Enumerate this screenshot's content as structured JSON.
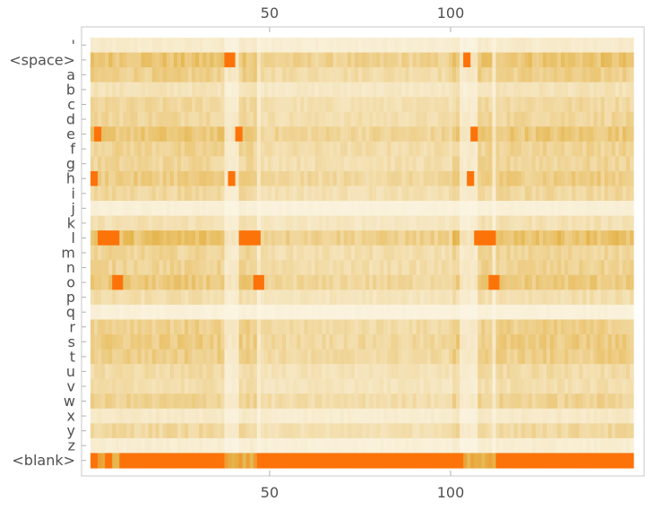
{
  "chart_data": {
    "type": "heatmap",
    "title": "",
    "xlabel": "",
    "ylabel": "",
    "x_range": [
      1,
      150
    ],
    "x_ticks": [
      50,
      100
    ],
    "x_tick_labels": [
      "50",
      "100"
    ],
    "x_axis_ticks_top_and_bottom": true,
    "rows": [
      "'",
      "<space>",
      "a",
      "b",
      "c",
      "d",
      "e",
      "f",
      "g",
      "h",
      "i",
      "j",
      "k",
      "l",
      "m",
      "n",
      "o",
      "p",
      "q",
      "r",
      "s",
      "t",
      "u",
      "v",
      "w",
      "x",
      "y",
      "z",
      "<blank>"
    ],
    "color_scale": {
      "low": "#fbf6e6",
      "mid": "#e5b44a",
      "high": "#ff6a00"
    },
    "row_intensity": {
      "'": 0.1,
      "<space>": 0.45,
      "a": 0.35,
      "b": 0.18,
      "c": 0.28,
      "d": 0.3,
      "e": 0.42,
      "f": 0.32,
      "g": 0.3,
      "h": 0.38,
      "i": 0.28,
      "j": 0.06,
      "k": 0.2,
      "l": 0.48,
      "m": 0.3,
      "n": 0.32,
      "o": 0.4,
      "p": 0.22,
      "q": 0.05,
      "r": 0.35,
      "s": 0.38,
      "t": 0.36,
      "u": 0.25,
      "v": 0.22,
      "w": 0.32,
      "x": 0.12,
      "y": 0.28,
      "z": 0.08,
      "<blank>": 0.95
    },
    "hotspots": [
      {
        "row": "<space>",
        "x_from": 38,
        "x_to": 40
      },
      {
        "row": "<space>",
        "x_from": 104,
        "x_to": 105
      },
      {
        "row": "e",
        "x_from": 2,
        "x_to": 3
      },
      {
        "row": "e",
        "x_from": 41,
        "x_to": 42
      },
      {
        "row": "e",
        "x_from": 106,
        "x_to": 107
      },
      {
        "row": "h",
        "x_from": 1,
        "x_to": 2
      },
      {
        "row": "h",
        "x_from": 39,
        "x_to": 40
      },
      {
        "row": "h",
        "x_from": 105,
        "x_to": 106
      },
      {
        "row": "l",
        "x_from": 3,
        "x_to": 8
      },
      {
        "row": "l",
        "x_from": 42,
        "x_to": 47
      },
      {
        "row": "l",
        "x_from": 107,
        "x_to": 112
      },
      {
        "row": "o",
        "x_from": 7,
        "x_to": 9
      },
      {
        "row": "o",
        "x_from": 46,
        "x_to": 48
      },
      {
        "row": "o",
        "x_from": 111,
        "x_to": 113
      }
    ],
    "bright_columns": [
      38,
      39,
      40,
      41,
      47,
      103,
      104,
      105,
      106,
      107,
      112
    ],
    "blank_row_dim_segments": [
      {
        "x_from": 3,
        "x_to": 4
      },
      {
        "x_from": 7,
        "x_to": 8
      },
      {
        "x_from": 38,
        "x_to": 46
      },
      {
        "x_from": 104,
        "x_to": 112
      }
    ]
  }
}
